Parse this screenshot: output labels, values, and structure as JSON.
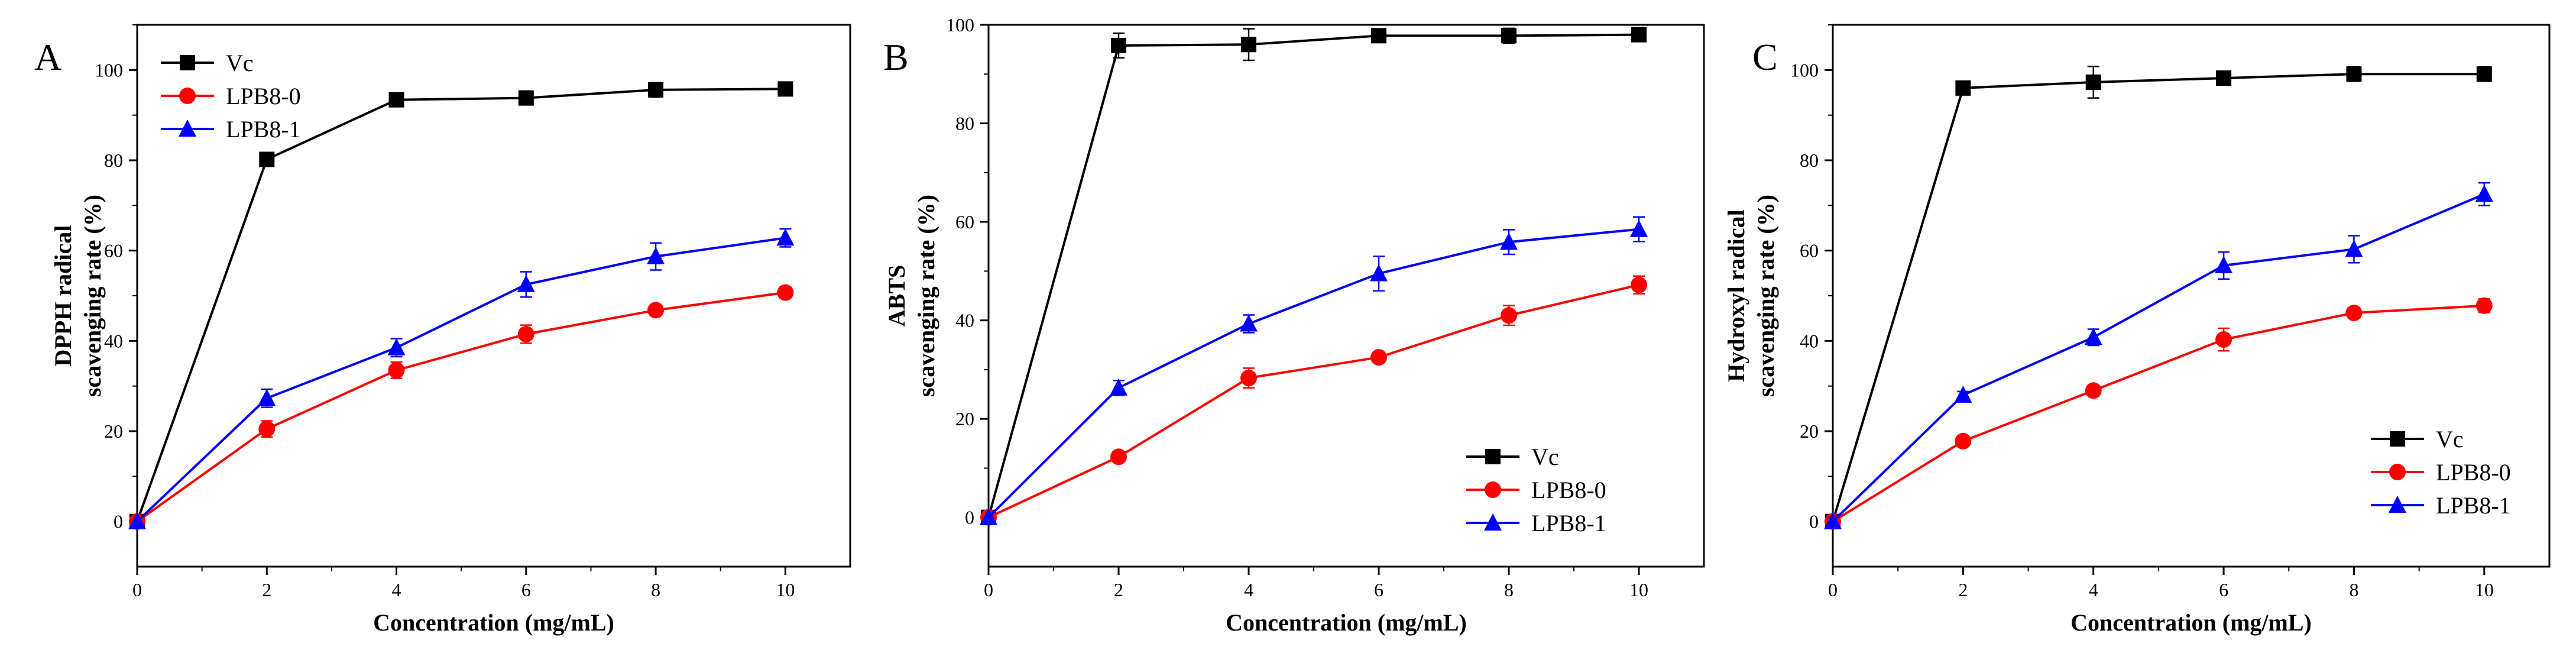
{
  "chart_data": [
    {
      "type": "line",
      "panel_label": "A",
      "xlabel": "Concentration (mg/mL)",
      "ylabel": [
        "DPPH radical",
        "scavenging rate (%)"
      ],
      "x": [
        0,
        2,
        4,
        6,
        8,
        10
      ],
      "xticks": [
        "0",
        "2",
        "4",
        "6",
        "8",
        "10"
      ],
      "yticks": [
        "0",
        "20",
        "40",
        "60",
        "80",
        "100"
      ],
      "xlim": [
        0,
        11
      ],
      "ylim": [
        -10,
        110
      ],
      "legend_position": "top-left",
      "series": [
        {
          "name": "Vc",
          "color": "#000000",
          "marker": "square",
          "values": [
            0,
            80.2,
            93.4,
            93.8,
            95.6,
            95.8
          ],
          "errors": [
            0,
            0.8,
            1.0,
            0.6,
            1.6,
            0.6
          ]
        },
        {
          "name": "LPB8-0",
          "color": "#ff0000",
          "marker": "circle",
          "values": [
            0,
            20.5,
            33.5,
            41.5,
            46.8,
            50.7
          ],
          "errors": [
            0,
            1.8,
            1.8,
            2.0,
            0.8,
            1.3
          ]
        },
        {
          "name": "LPB8-1",
          "color": "#0000ff",
          "marker": "triangle",
          "values": [
            0,
            27.3,
            38.5,
            52.5,
            58.7,
            62.8
          ],
          "errors": [
            0,
            2.0,
            2.0,
            2.8,
            3.0,
            2.0
          ]
        }
      ]
    },
    {
      "type": "line",
      "panel_label": "B",
      "xlabel": "Concentration (mg/mL)",
      "ylabel": [
        "ABTS",
        "scavenging rate (%)"
      ],
      "x": [
        0,
        2,
        4,
        6,
        8,
        10
      ],
      "xticks": [
        "0",
        "2",
        "4",
        "6",
        "8",
        "10"
      ],
      "yticks": [
        "0",
        "20",
        "40",
        "60",
        "80",
        "100"
      ],
      "xlim": [
        0,
        11
      ],
      "ylim": [
        -10,
        100
      ],
      "legend_position": "bottom-right",
      "series": [
        {
          "name": "Vc",
          "color": "#000000",
          "marker": "square",
          "values": [
            0,
            95.8,
            96.0,
            97.8,
            97.8,
            98.0
          ],
          "errors": [
            0,
            2.5,
            3.2,
            0.6,
            1.5,
            0.6
          ]
        },
        {
          "name": "LPB8-0",
          "color": "#ff0000",
          "marker": "circle",
          "values": [
            0,
            12.3,
            28.3,
            32.5,
            41.0,
            47.2
          ],
          "errors": [
            0,
            0.6,
            2.0,
            1.0,
            2.0,
            1.8
          ]
        },
        {
          "name": "LPB8-1",
          "color": "#0000ff",
          "marker": "triangle",
          "values": [
            0,
            26.3,
            39.3,
            49.5,
            55.9,
            58.5
          ],
          "errors": [
            0,
            1.5,
            1.8,
            3.5,
            2.5,
            2.5
          ]
        }
      ]
    },
    {
      "type": "line",
      "panel_label": "C",
      "xlabel": "Concentration (mg/mL)",
      "ylabel": [
        "Hydroxyl radical",
        "scavenging rate (%)"
      ],
      "x": [
        0,
        2,
        4,
        6,
        8,
        10
      ],
      "xticks": [
        "0",
        "2",
        "4",
        "6",
        "8",
        "10"
      ],
      "yticks": [
        "0",
        "20",
        "40",
        "60",
        "80",
        "100"
      ],
      "xlim": [
        0,
        11
      ],
      "ylim": [
        -10,
        110
      ],
      "legend_position": "bottom-right",
      "series": [
        {
          "name": "Vc",
          "color": "#000000",
          "marker": "square",
          "values": [
            0,
            96.0,
            97.3,
            98.2,
            99.1,
            99.1
          ],
          "errors": [
            0,
            1.0,
            3.5,
            1.0,
            1.6,
            1.6
          ]
        },
        {
          "name": "LPB8-0",
          "color": "#ff0000",
          "marker": "circle",
          "values": [
            0,
            17.8,
            29.0,
            40.3,
            46.2,
            47.8
          ],
          "errors": [
            0,
            0.6,
            1.0,
            2.5,
            0.8,
            1.5
          ]
        },
        {
          "name": "LPB8-1",
          "color": "#0000ff",
          "marker": "triangle",
          "values": [
            0,
            28.0,
            40.8,
            56.7,
            60.3,
            72.5
          ],
          "errors": [
            0,
            0.8,
            1.8,
            3.0,
            3.0,
            2.5
          ]
        }
      ]
    }
  ]
}
